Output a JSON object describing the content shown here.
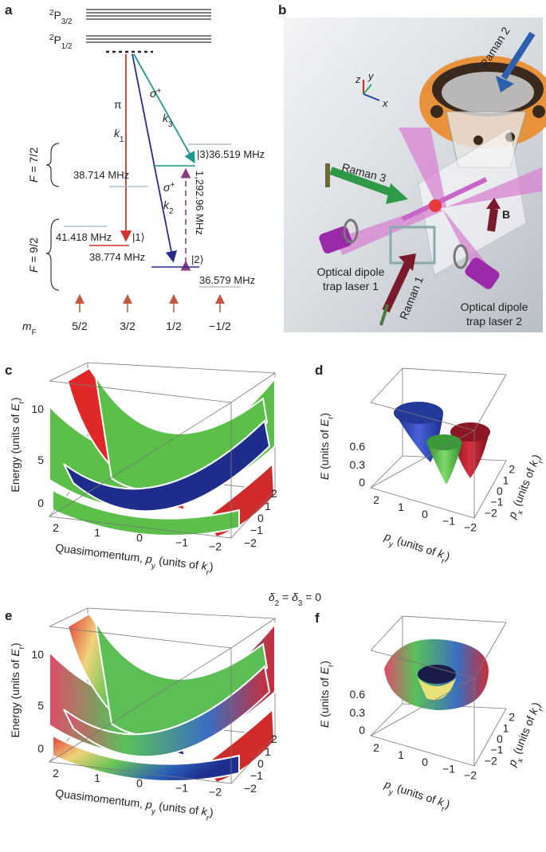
{
  "panel_a": {
    "label": "a",
    "p32": [
      {
        "sup": "2"
      },
      {
        "t": "P"
      },
      {
        "sub": "3/2"
      }
    ],
    "p12": [
      {
        "sup": "2"
      },
      {
        "t": "P"
      },
      {
        "sub": "1/2"
      }
    ],
    "pi": "π",
    "k1": [
      {
        "i": "k"
      },
      {
        "sub": "1"
      }
    ],
    "sigma3": [
      {
        "i": "σ"
      },
      {
        "sup": "+"
      }
    ],
    "k3": [
      {
        "i": "k"
      },
      {
        "sub": "3"
      }
    ],
    "sigma2": [
      {
        "i": "σ"
      },
      {
        "sup": "+"
      }
    ],
    "k2": [
      {
        "i": "k"
      },
      {
        "sub": "2"
      }
    ],
    "state3": "|3⟩",
    "state1": "|1⟩",
    "state2": "|2⟩",
    "f72": [
      {
        "i": "F"
      },
      {
        "t": " = 7/2"
      }
    ],
    "f92": [
      {
        "i": "F"
      },
      {
        "t": " = 9/2"
      }
    ],
    "shift_3": "36.519 MHz",
    "shift_f72": "38.714 MHz",
    "hyperfine": "1,292.96 MHz",
    "shift_f92": "41.418 MHz",
    "shift_1": "38.774 MHz",
    "shift_2": "36.579 MHz",
    "mf": [
      {
        "i": "m"
      },
      {
        "sub": "F"
      }
    ],
    "mf_values": [
      "5/2",
      "3/2",
      "1/2",
      "−1/2"
    ]
  },
  "panel_b": {
    "label": "b",
    "raman2": "Raman 2",
    "axis_z": "z",
    "axis_y": "y",
    "axis_x": "x",
    "raman3": "Raman 3",
    "b_field": "B",
    "trap1": [
      "Optical dipole",
      "trap laser 1"
    ],
    "raman1": "Raman 1",
    "trap2": [
      "Optical dipole",
      "trap laser 2"
    ]
  },
  "panel_c": {
    "label": "c",
    "y_label": [
      {
        "t": "Energy (units of "
      },
      {
        "i": "E"
      },
      {
        "sub": "r"
      },
      {
        "t": ")"
      }
    ],
    "y_ticks": [
      "0",
      "5",
      "10"
    ],
    "x_label": [
      {
        "t": "Quasimomentum, "
      },
      {
        "i": "p"
      },
      {
        "sub": "y"
      },
      {
        "t": " (units of "
      },
      {
        "i": "k"
      },
      {
        "sub": "r"
      },
      {
        "t": ")"
      }
    ],
    "x_ticks": [
      "2",
      "1",
      "0",
      "−1",
      "−2"
    ],
    "depth_ticks": [
      "2",
      "1",
      "0",
      "−1",
      "−2"
    ]
  },
  "panel_d": {
    "label": "d",
    "z_label": [
      {
        "i": "E"
      },
      {
        "t": " (units of "
      },
      {
        "i": "E"
      },
      {
        "sub": "r"
      },
      {
        "t": ")"
      }
    ],
    "z_ticks": [
      "0.6",
      "0.3",
      "0"
    ],
    "py_label": [
      {
        "i": "p"
      },
      {
        "sub": "y"
      },
      {
        "t": " (units of "
      },
      {
        "i": "k"
      },
      {
        "sub": "r"
      },
      {
        "t": ")"
      }
    ],
    "py_ticks": [
      "2",
      "1",
      "0",
      "−1",
      "−2"
    ],
    "px_label": [
      {
        "i": "p"
      },
      {
        "sub": "x"
      },
      {
        "t": " (units of "
      },
      {
        "i": "k"
      },
      {
        "sub": "r"
      },
      {
        "t": ")"
      }
    ],
    "px_ticks": [
      "2",
      "1",
      "0",
      "−1",
      "−2"
    ]
  },
  "condition": [
    {
      "i": "δ"
    },
    {
      "sub": "2"
    },
    {
      "t": " = "
    },
    {
      "i": "δ"
    },
    {
      "sub": "3"
    },
    {
      "t": " = 0"
    }
  ],
  "panel_e": {
    "label": "e",
    "y_label": [
      {
        "t": "Energy (units of "
      },
      {
        "i": "E"
      },
      {
        "sub": "r"
      },
      {
        "t": ")"
      }
    ],
    "y_ticks": [
      "0",
      "5",
      "10"
    ],
    "x_label": [
      {
        "t": "Quasimomentum, "
      },
      {
        "i": "p"
      },
      {
        "sub": "y"
      },
      {
        "t": " (units of "
      },
      {
        "i": "k"
      },
      {
        "sub": "r"
      },
      {
        "t": ")"
      }
    ],
    "x_ticks": [
      "2",
      "1",
      "0",
      "−1",
      "−2"
    ],
    "depth_ticks": [
      "2",
      "1",
      "0",
      "−1",
      "−2"
    ]
  },
  "panel_f": {
    "label": "f",
    "z_label": [
      {
        "i": "E"
      },
      {
        "t": " (units of "
      },
      {
        "i": "E"
      },
      {
        "sub": "r"
      },
      {
        "t": ")"
      }
    ],
    "z_ticks": [
      "0.6",
      "0.3",
      "0"
    ],
    "py_label": [
      {
        "i": "p"
      },
      {
        "sub": "y"
      },
      {
        "t": " (units of "
      },
      {
        "i": "k"
      },
      {
        "sub": "r"
      },
      {
        "t": ")"
      }
    ],
    "py_ticks": [
      "2",
      "1",
      "0",
      "−1",
      "−2"
    ],
    "px_label": [
      {
        "i": "p"
      },
      {
        "sub": "x"
      },
      {
        "t": " (units of "
      },
      {
        "i": "k"
      },
      {
        "sub": "r"
      },
      {
        "t": ")"
      }
    ],
    "px_ticks": [
      "2",
      "1",
      "0",
      "−1",
      "−2"
    ]
  }
}
